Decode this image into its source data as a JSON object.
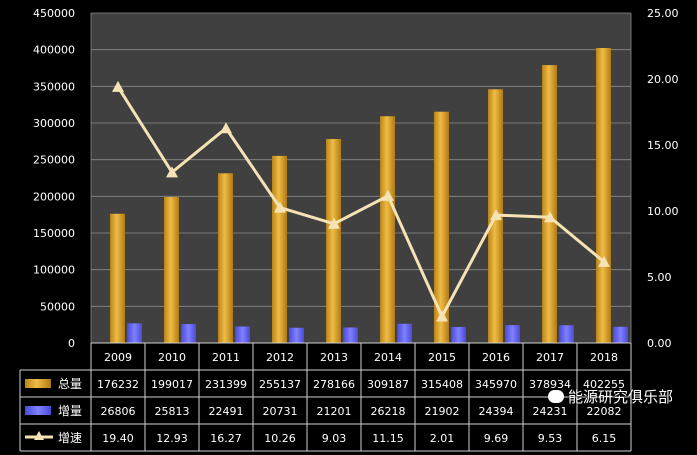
{
  "chart_data": {
    "type": "bar",
    "categories": [
      "2009",
      "2010",
      "2011",
      "2012",
      "2013",
      "2014",
      "2015",
      "2016",
      "2017",
      "2018"
    ],
    "series": [
      {
        "name": "总量",
        "type": "bar",
        "axis": "left",
        "color": "#e0a52a",
        "values": [
          176232,
          199017,
          231399,
          255137,
          278166,
          309187,
          315408,
          345970,
          378934,
          402255
        ],
        "labels": [
          "176232",
          "199017",
          "231399",
          "255137",
          "278166",
          "309187",
          "315408",
          "345970",
          "378934",
          "402255"
        ]
      },
      {
        "name": "增量",
        "type": "bar",
        "axis": "left",
        "color": "#6b6bff",
        "values": [
          26806,
          25813,
          22491,
          20731,
          21201,
          26218,
          21902,
          24394,
          24231,
          22082
        ],
        "labels": [
          "26806",
          "25813",
          "22491",
          "20731",
          "21201",
          "26218",
          "21902",
          "24394",
          "24231",
          "22082"
        ]
      },
      {
        "name": "增速",
        "type": "line",
        "axis": "right",
        "color": "#f5e3b5",
        "values": [
          19.4,
          12.93,
          16.27,
          10.26,
          9.03,
          11.15,
          2.01,
          9.69,
          9.53,
          6.15
        ],
        "labels": [
          "19.40",
          "12.93",
          "16.27",
          "10.26",
          "9.03",
          "11.15",
          "2.01",
          "9.69",
          "9.53",
          "6.15"
        ]
      }
    ],
    "y_left": {
      "min": 0,
      "max": 450000,
      "ticks": [
        "0",
        "50000",
        "100000",
        "150000",
        "200000",
        "250000",
        "300000",
        "350000",
        "400000",
        "450000"
      ]
    },
    "y_right": {
      "min": 0,
      "max": 25,
      "ticks": [
        "0.00",
        "5.00",
        "10.00",
        "15.00",
        "20.00",
        "25.00"
      ]
    },
    "data_table": true,
    "grid": true
  },
  "watermark": "能源研究俱乐部",
  "colors": {
    "background": "#000000",
    "plot": "#404040",
    "grid": "#8a8a8a",
    "bar_total": "#e0a52a",
    "bar_inc": "#6b6bff",
    "line": "#f5e3b5"
  }
}
